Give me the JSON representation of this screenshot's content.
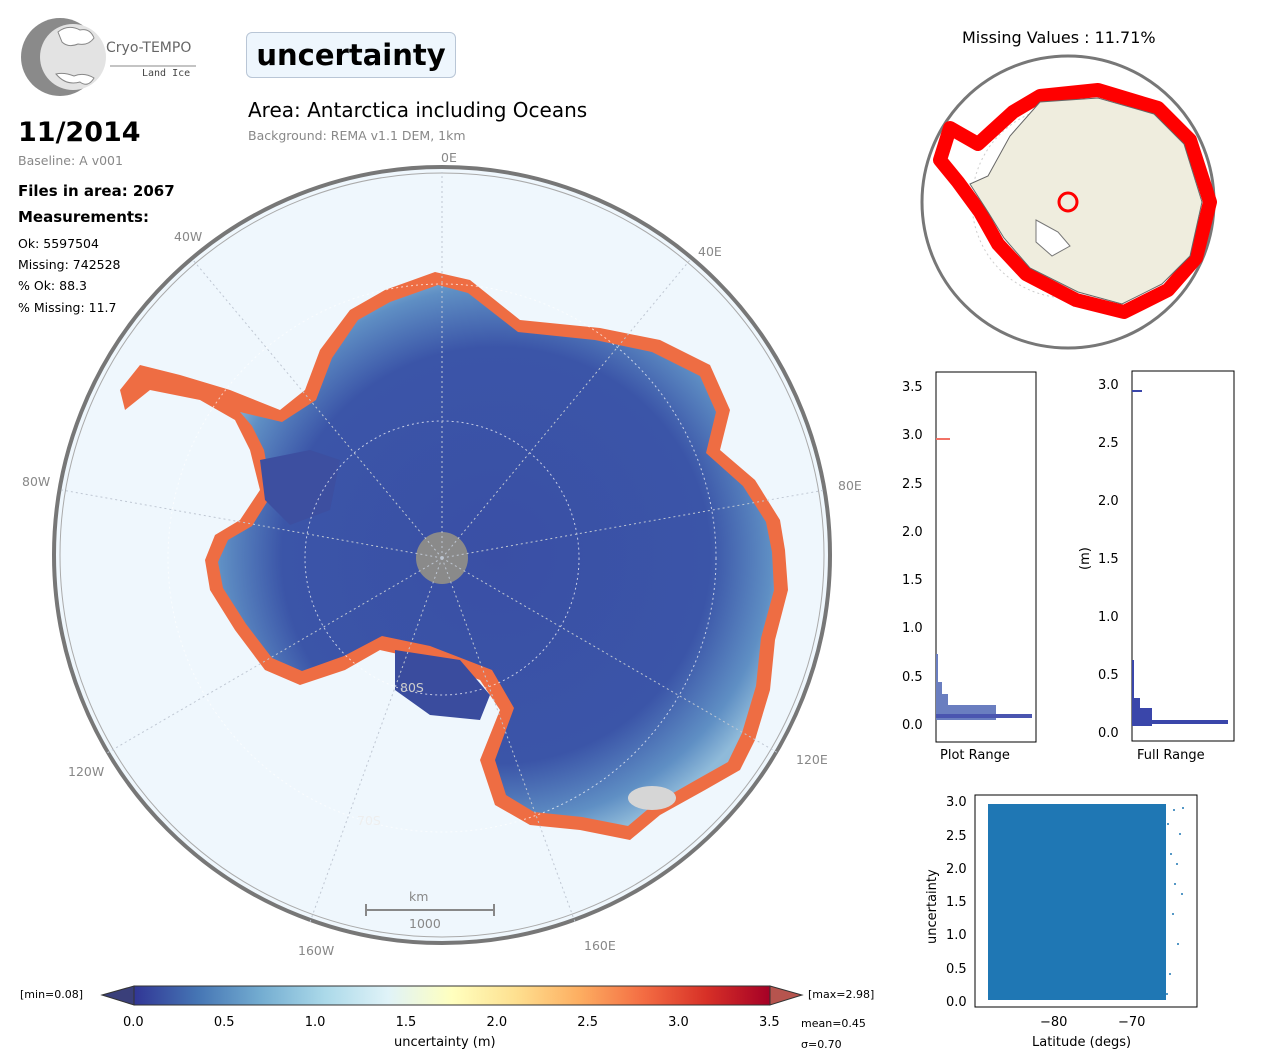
{
  "logo": {
    "name": "Cryo-TEMPO",
    "subtitle": "Land Ice"
  },
  "parameter": "uncertainty",
  "date": "11/2014",
  "baseline": "Baseline: A v001",
  "files_in_area": "Files in area: 2067",
  "measurements_title": "Measurements:",
  "stats": {
    "ok": "Ok: 5597504",
    "missing": "Missing: 742528",
    "pct_ok": "% Ok: 88.3",
    "pct_missing": "% Missing: 11.7"
  },
  "area_title": "Area: Antarctica including Oceans",
  "background": "Background: REMA v1.1 DEM, 1km",
  "map": {
    "lon_labels": [
      "0E",
      "40W",
      "40E",
      "80W",
      "80E",
      "120W",
      "120E",
      "160W",
      "160E"
    ],
    "lat_labels": [
      "80S",
      "70S"
    ],
    "scalebar_unit": "km",
    "scalebar_value": "1000"
  },
  "colorbar": {
    "min_label": "[min=0.08]",
    "max_label": "[max=2.98]",
    "ticks": [
      "0.0",
      "0.5",
      "1.0",
      "1.5",
      "2.0",
      "2.5",
      "3.0",
      "3.5"
    ],
    "label": "uncertainty (m)",
    "mean": "mean=0.45",
    "sigma": "σ=0.70",
    "colors": [
      "#313695",
      "#4575b4",
      "#74add1",
      "#abd9e9",
      "#e0f3f8",
      "#ffffbf",
      "#fee090",
      "#fdae61",
      "#f46d43",
      "#d73027",
      "#a50026"
    ]
  },
  "missing_map": {
    "title": "Missing Values : 11.71%"
  },
  "hist_plot_range": {
    "xlabel": "Plot Range",
    "yticks": [
      "0.0",
      "0.5",
      "1.0",
      "1.5",
      "2.0",
      "2.5",
      "3.0",
      "3.5"
    ]
  },
  "hist_full_range": {
    "xlabel": "Full Range",
    "ylabel": "(m)",
    "yticks": [
      "0.0",
      "0.5",
      "1.0",
      "1.5",
      "2.0",
      "2.5",
      "3.0"
    ]
  },
  "scatter": {
    "xlabel": "Latitude (degs)",
    "ylabel": "uncertainty",
    "xticks": [
      "−80",
      "−70"
    ],
    "yticks": [
      "0.0",
      "0.5",
      "1.0",
      "1.5",
      "2.0",
      "2.5",
      "3.0"
    ]
  }
}
